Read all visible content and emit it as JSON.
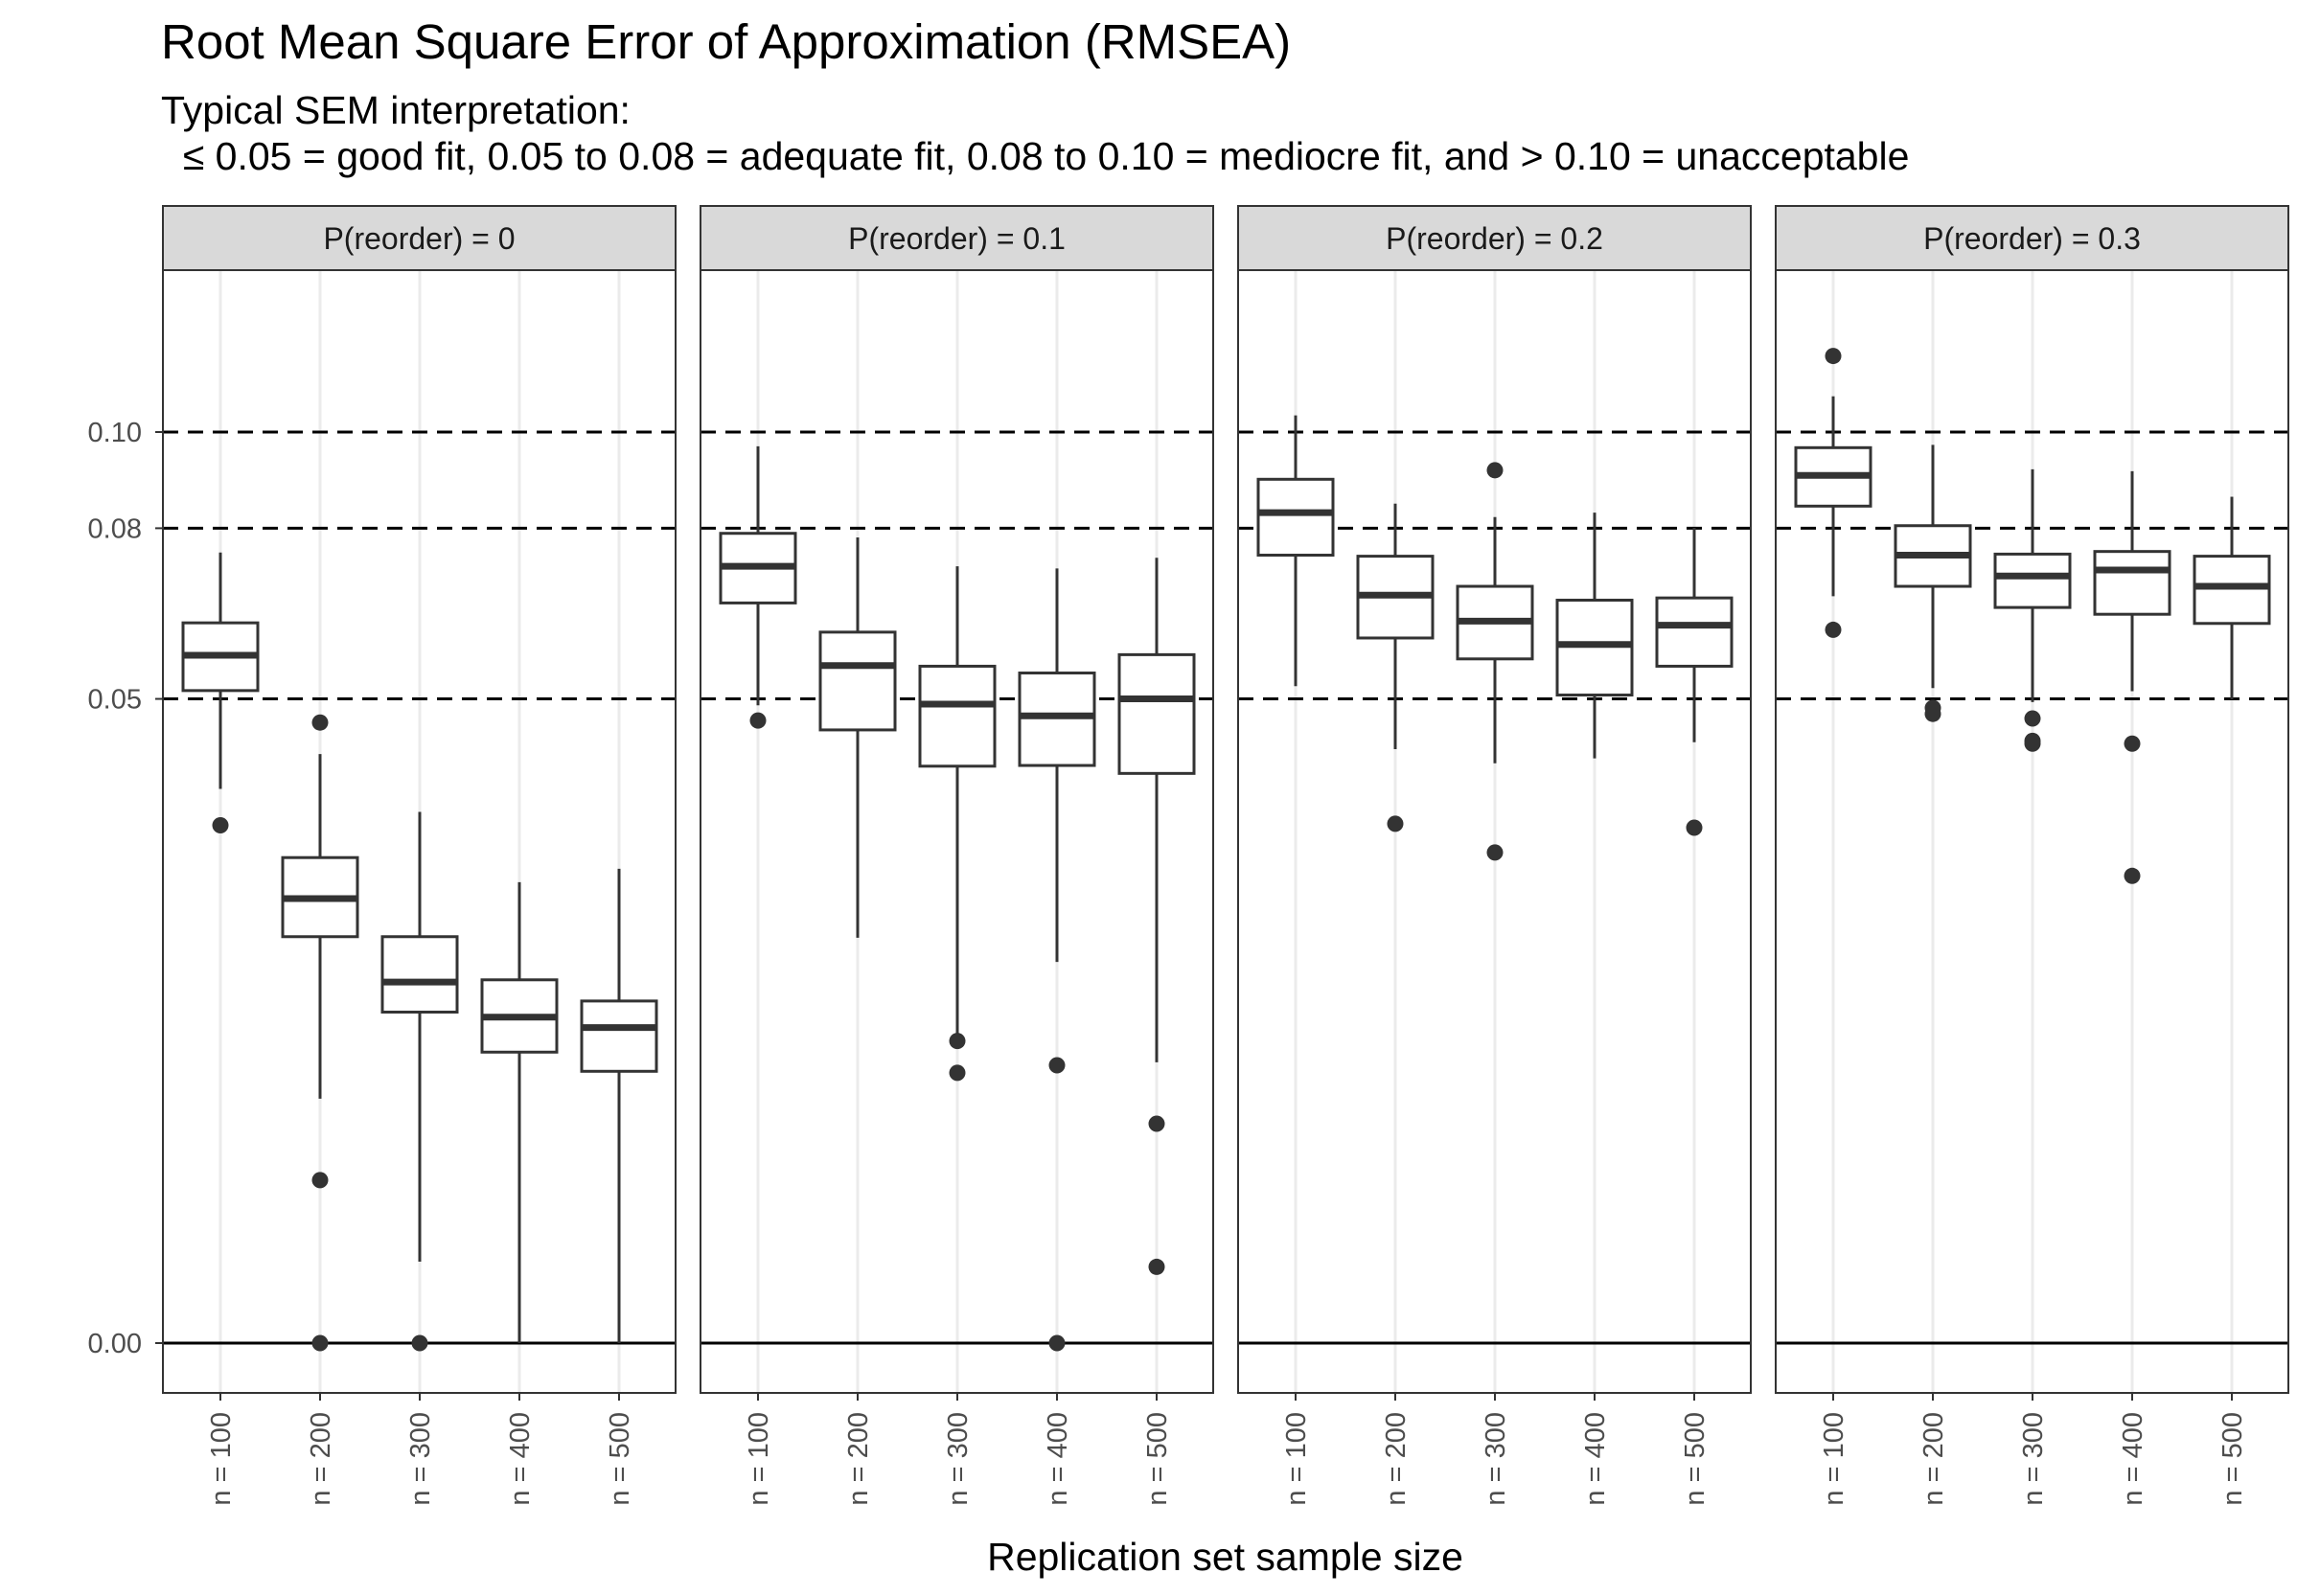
{
  "chart_data": {
    "type": "boxplot",
    "title": "Root Mean Square Error of Approximation (RMSEA)",
    "subtitle": [
      "Typical SEM interpretation:",
      "  ≤ 0.05 = good fit, 0.05 to 0.08 = adequate fit, 0.08 to 0.10 = mediocre fit, and > 0.10 = unacceptable"
    ],
    "xlabel": "Replication set sample size",
    "ylabel": "",
    "y_scale": "sqrt",
    "ylim": [
      0,
      0.13
    ],
    "yticks": [
      {
        "value": 0.0,
        "label": "0.00"
      },
      {
        "value": 0.05,
        "label": "0.05"
      },
      {
        "value": 0.08,
        "label": "0.08"
      },
      {
        "value": 0.1,
        "label": "0.10"
      }
    ],
    "reference_lines": [
      {
        "value": 0.05,
        "style": "dashed"
      },
      {
        "value": 0.08,
        "style": "dashed"
      },
      {
        "value": 0.1,
        "style": "dashed"
      },
      {
        "value": 0.0,
        "style": "solid"
      }
    ],
    "categories": [
      "n = 100",
      "n = 200",
      "n = 300",
      "n = 400",
      "n = 500"
    ],
    "panels": [
      {
        "label": "P(reorder) = 0",
        "boxes": [
          {
            "whisker_low": 0.037,
            "q1": 0.0513,
            "median": 0.057,
            "q3": 0.0625,
            "whisker_high": 0.0753,
            "outliers": [
              0.0323
            ]
          },
          {
            "whisker_low": 0.0072,
            "q1": 0.0199,
            "median": 0.0238,
            "q3": 0.0284,
            "whisker_high": 0.0418,
            "outliers": [
              0.0464,
              0.0032,
              0.0
            ]
          },
          {
            "whisker_low": 0.0008,
            "q1": 0.0132,
            "median": 0.0157,
            "q3": 0.0199,
            "whisker_high": 0.034,
            "outliers": [
              0.0
            ]
          },
          {
            "whisker_low": 0.0,
            "q1": 0.0102,
            "median": 0.0128,
            "q3": 0.0159,
            "whisker_high": 0.0256,
            "outliers": []
          },
          {
            "whisker_low": 0.0,
            "q1": 0.0089,
            "median": 0.012,
            "q3": 0.0141,
            "whisker_high": 0.0271,
            "outliers": []
          }
        ]
      },
      {
        "label": "P(reorder) = 0.1",
        "boxes": [
          {
            "whisker_low": 0.049,
            "q1": 0.066,
            "median": 0.0727,
            "q3": 0.079,
            "whisker_high": 0.0969,
            "outliers": [
              0.0467
            ]
          },
          {
            "whisker_low": 0.0198,
            "q1": 0.0453,
            "median": 0.0553,
            "q3": 0.0609,
            "whisker_high": 0.0782,
            "outliers": []
          },
          {
            "whisker_low": 0.0115,
            "q1": 0.0401,
            "median": 0.0492,
            "q3": 0.0552,
            "whisker_high": 0.0727,
            "outliers": [
              0.011,
              0.0088
            ]
          },
          {
            "whisker_low": 0.0175,
            "q1": 0.0402,
            "median": 0.0474,
            "q3": 0.0541,
            "whisker_high": 0.0723,
            "outliers": [
              0.0093,
              0.0
            ]
          },
          {
            "whisker_low": 0.0095,
            "q1": 0.0391,
            "median": 0.05,
            "q3": 0.0571,
            "whisker_high": 0.0743,
            "outliers": [
              0.0058,
              0.0007
            ]
          }
        ]
      },
      {
        "label": "P(reorder) = 0.2",
        "boxes": [
          {
            "whisker_low": 0.052,
            "q1": 0.0748,
            "median": 0.0831,
            "q3": 0.0899,
            "whisker_high": 0.1037,
            "outliers": []
          },
          {
            "whisker_low": 0.0425,
            "q1": 0.0599,
            "median": 0.0674,
            "q3": 0.0746,
            "whisker_high": 0.0849,
            "outliers": [
              0.0325
            ]
          },
          {
            "whisker_low": 0.0405,
            "q1": 0.0564,
            "median": 0.0628,
            "q3": 0.069,
            "whisker_high": 0.0822,
            "outliers": [
              0.0918,
              0.029
            ]
          },
          {
            "whisker_low": 0.0412,
            "q1": 0.0506,
            "median": 0.0588,
            "q3": 0.0665,
            "whisker_high": 0.0831,
            "outliers": []
          },
          {
            "whisker_low": 0.0435,
            "q1": 0.0552,
            "median": 0.0621,
            "q3": 0.0669,
            "whisker_high": 0.0801,
            "outliers": [
              0.032
            ]
          }
        ]
      },
      {
        "label": "P(reorder) = 0.3",
        "boxes": [
          {
            "whisker_low": 0.0672,
            "q1": 0.0844,
            "median": 0.0907,
            "q3": 0.0966,
            "whisker_high": 0.108,
            "outliers": [
              0.1174,
              0.0613
            ]
          },
          {
            "whisker_low": 0.0517,
            "q1": 0.069,
            "median": 0.0748,
            "q3": 0.0805,
            "whisker_high": 0.0972,
            "outliers": [
              0.0486,
              0.0477
            ]
          },
          {
            "whisker_low": 0.0495,
            "q1": 0.0652,
            "median": 0.0709,
            "q3": 0.075,
            "whisker_high": 0.092,
            "outliers": [
              0.047,
              0.0433,
              0.0437
            ]
          },
          {
            "whisker_low": 0.0512,
            "q1": 0.064,
            "median": 0.072,
            "q3": 0.0755,
            "whisker_high": 0.0916,
            "outliers": [
              0.0433,
              0.0263
            ]
          },
          {
            "whisker_low": 0.0499,
            "q1": 0.0624,
            "median": 0.069,
            "q3": 0.0746,
            "whisker_high": 0.0863,
            "outliers": []
          }
        ]
      }
    ]
  }
}
